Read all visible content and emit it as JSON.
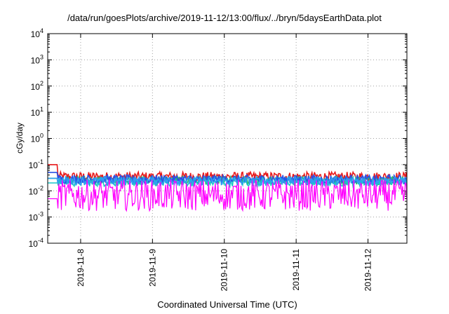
{
  "chart_data": {
    "type": "line",
    "title": "/data/run/goesPlots/archive/2019-11-12/13:00/flux/../bryn/5daysEarthData.plot",
    "xlabel": "Coordinated Universal Time (UTC)",
    "ylabel": "cGy/day",
    "yscale": "log",
    "ylim": [
      0.0001,
      10000
    ],
    "yticks": [
      {
        "value": 0.0001,
        "base": "10",
        "exp": "-4"
      },
      {
        "value": 0.001,
        "base": "10",
        "exp": "-3"
      },
      {
        "value": 0.01,
        "base": "10",
        "exp": "-2"
      },
      {
        "value": 0.1,
        "base": "10",
        "exp": "-1"
      },
      {
        "value": 1,
        "base": "10",
        "exp": "0"
      },
      {
        "value": 10,
        "base": "10",
        "exp": "1"
      },
      {
        "value": 100,
        "base": "10",
        "exp": "2"
      },
      {
        "value": 1000,
        "base": "10",
        "exp": "3"
      },
      {
        "value": 10000,
        "base": "10",
        "exp": "4"
      }
    ],
    "xlim": [
      "2019-11-07T13:00",
      "2019-11-12T13:00"
    ],
    "xticks": [
      "2019-11-8",
      "2019-11-9",
      "2019-11-10",
      "2019-11-11",
      "2019-11-12"
    ],
    "grid": true,
    "series": [
      {
        "color": "#e8191a",
        "level": 0.035,
        "noise": 0.22,
        "start": 0.1
      },
      {
        "color": "#2bbd6a",
        "level": 0.025,
        "noise": 0.2,
        "start": 0.03
      },
      {
        "color": "#18c8c8",
        "level": 0.022,
        "noise": 0.22,
        "start": 0.02
      },
      {
        "color": "#2a52e6",
        "level": 0.028,
        "noise": 0.2,
        "start": 0.05
      },
      {
        "color": "#2f9ef0",
        "level": 0.024,
        "noise": 0.2,
        "start": 0.03
      },
      {
        "color": "#ff00ff",
        "level": 0.006,
        "noise": 0.5,
        "start": 0.005
      }
    ]
  }
}
